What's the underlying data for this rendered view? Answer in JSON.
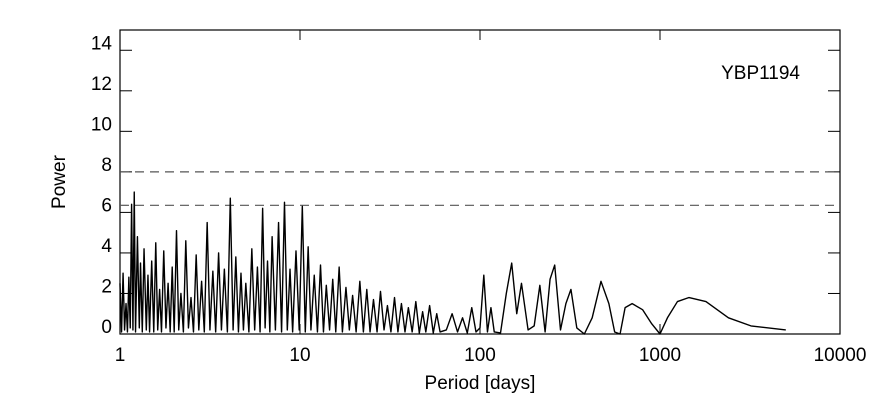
{
  "chart_data": {
    "type": "line",
    "annotation": "YBP1194",
    "xlabel": "Period [days]",
    "ylabel": "Power",
    "x_log_scale": true,
    "xlim": [
      1,
      10000
    ],
    "xticks": [
      1,
      10,
      100,
      1000,
      10000
    ],
    "ylim": [
      0,
      15
    ],
    "yticks": [
      0,
      2,
      4,
      6,
      8,
      10,
      12,
      14
    ],
    "reference_lines": [
      8.0,
      6.35
    ],
    "color": "#000000",
    "x": [
      1.0,
      1.02,
      1.04,
      1.06,
      1.08,
      1.1,
      1.12,
      1.14,
      1.16,
      1.18,
      1.2,
      1.22,
      1.25,
      1.28,
      1.3,
      1.33,
      1.36,
      1.4,
      1.43,
      1.46,
      1.5,
      1.54,
      1.58,
      1.62,
      1.66,
      1.7,
      1.75,
      1.8,
      1.85,
      1.9,
      1.95,
      2.0,
      2.06,
      2.12,
      2.18,
      2.25,
      2.32,
      2.4,
      2.48,
      2.56,
      2.65,
      2.74,
      2.84,
      2.94,
      3.05,
      3.16,
      3.28,
      3.4,
      3.53,
      3.66,
      3.8,
      3.95,
      4.1,
      4.25,
      4.4,
      4.55,
      4.7,
      4.85,
      5.0,
      5.2,
      5.4,
      5.6,
      5.8,
      6.0,
      6.2,
      6.4,
      6.6,
      6.8,
      7.0,
      7.3,
      7.6,
      7.9,
      8.2,
      8.5,
      8.8,
      9.1,
      9.5,
      9.9,
      10.3,
      10.7,
      11.1,
      11.5,
      12.0,
      12.5,
      13.0,
      13.5,
      14.0,
      14.6,
      15.2,
      15.8,
      16.5,
      17.2,
      18.0,
      18.8,
      19.6,
      20.5,
      21.5,
      22.5,
      23.5,
      24.5,
      25.6,
      26.8,
      28.0,
      29.3,
      30.6,
      32,
      33.5,
      35,
      36.6,
      38.3,
      40,
      42,
      44,
      46,
      48,
      50,
      52.5,
      55,
      57.5,
      60,
      65,
      70,
      75,
      80,
      85,
      90,
      95,
      100,
      105,
      110,
      115,
      120,
      130,
      140,
      150,
      160,
      170,
      185,
      200,
      215,
      230,
      245,
      260,
      280,
      300,
      320,
      345,
      380,
      420,
      470,
      520,
      560,
      600,
      640,
      700,
      800,
      900,
      1000,
      1100,
      1250,
      1450,
      1800,
      2400,
      3200,
      5000
    ],
    "values": [
      2.5,
      0.1,
      3.0,
      0.2,
      1.5,
      0.1,
      2.8,
      0.3,
      6.4,
      0.2,
      7.0,
      0.1,
      4.8,
      0.3,
      3.5,
      0.1,
      4.2,
      0.2,
      2.9,
      0.1,
      3.6,
      0.1,
      4.5,
      0.2,
      2.2,
      0.1,
      4.1,
      0.3,
      2.5,
      0.1,
      3.3,
      0.1,
      5.1,
      0.2,
      2.0,
      0.1,
      4.6,
      0.3,
      1.8,
      0.1,
      3.9,
      0.2,
      2.6,
      0.1,
      5.5,
      0.2,
      3.1,
      0.1,
      4.0,
      0.2,
      3.2,
      0.1,
      6.7,
      0.2,
      3.8,
      0.1,
      3.0,
      0.2,
      2.5,
      0.1,
      4.2,
      0.2,
      3.3,
      0.1,
      6.2,
      0.3,
      3.6,
      0.1,
      4.8,
      0.2,
      5.5,
      0.1,
      6.5,
      0.2,
      3.2,
      0.1,
      4.1,
      0.2,
      6.3,
      0.1,
      4.3,
      0.2,
      2.9,
      0.1,
      3.4,
      0.1,
      2.4,
      0.2,
      2.7,
      0.1,
      3.3,
      0.1,
      2.3,
      0.2,
      1.9,
      0.1,
      2.6,
      0.1,
      2.2,
      0.1,
      1.7,
      0.1,
      2.1,
      0.2,
      1.4,
      0.1,
      1.8,
      0.1,
      1.5,
      0.1,
      1.3,
      0.1,
      1.6,
      0.05,
      1.1,
      0.1,
      1.4,
      0.05,
      1.0,
      0.1,
      0.2,
      1.0,
      0.1,
      0.8,
      0.05,
      1.3,
      0.1,
      0.3,
      2.9,
      0.1,
      1.3,
      0.1,
      0.05,
      2.0,
      3.5,
      1.0,
      2.5,
      0.2,
      0.4,
      2.4,
      0.1,
      2.7,
      3.4,
      0.2,
      1.5,
      2.2,
      0.3,
      0.0,
      0.8,
      2.6,
      1.5,
      0.1,
      0.0,
      1.3,
      1.5,
      1.2,
      0.5,
      0.0,
      0.8,
      1.6,
      1.8,
      1.6,
      0.8,
      0.4,
      0.2
    ]
  }
}
